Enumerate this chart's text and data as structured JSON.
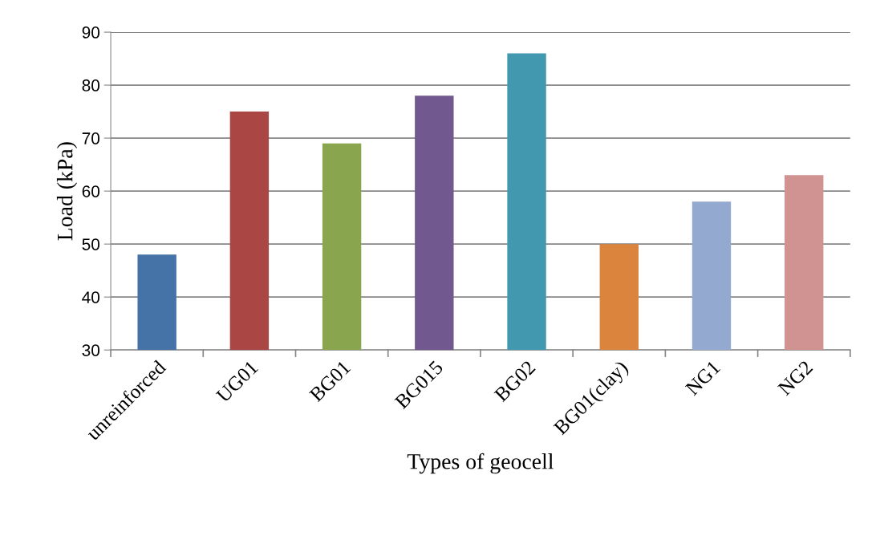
{
  "chart_data": {
    "type": "bar",
    "xlabel": "Types of geocell",
    "ylabel": "Load (kPa)",
    "categories": [
      "unreinforced",
      "UG01",
      "BG01",
      "BG015",
      "BG02",
      "BG01(clay)",
      "NG1",
      "NG2"
    ],
    "values": [
      48,
      75,
      69,
      78,
      86,
      50,
      58,
      63
    ],
    "colors": [
      "#4573a7",
      "#aa4643",
      "#89a54e",
      "#71588f",
      "#4198af",
      "#db843d",
      "#93a9cf",
      "#d09392"
    ],
    "ylim": [
      30,
      90
    ],
    "yticks": [
      30,
      40,
      50,
      60,
      70,
      80,
      90
    ],
    "grid": "y",
    "legend": false
  }
}
